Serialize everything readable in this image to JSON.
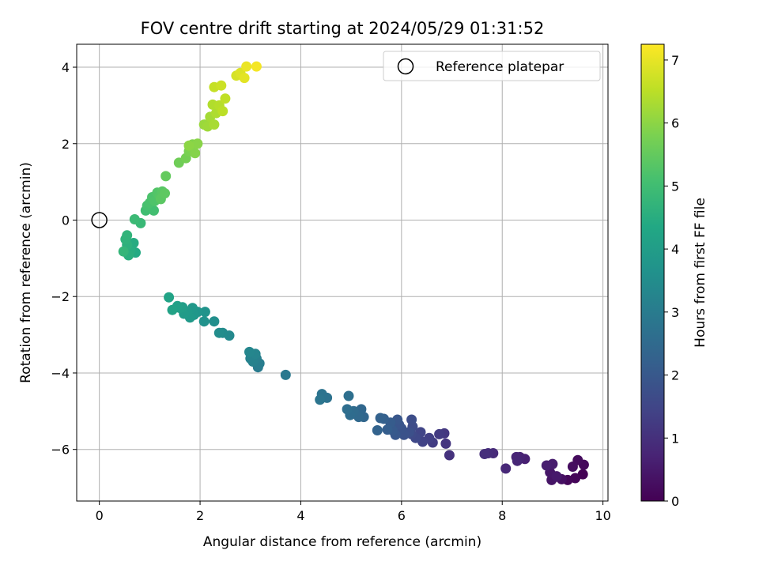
{
  "chart_data": {
    "type": "scatter",
    "title": "FOV centre drift starting at 2024/05/29 01:31:52",
    "xlabel": "Angular distance from reference (arcmin)",
    "ylabel": "Rotation from reference (arcmin)",
    "xlim": [
      -0.45,
      10.1
    ],
    "ylim": [
      -7.35,
      4.6
    ],
    "xticks": [
      0,
      2,
      4,
      6,
      8,
      10
    ],
    "yticks": [
      -6,
      -4,
      -2,
      0,
      2,
      4
    ],
    "grid": true,
    "legend": {
      "placement": "top-right",
      "entries": [
        "Reference platepar"
      ]
    },
    "reference_point": {
      "label": "Reference platepar",
      "x": 0,
      "y": 0
    },
    "colorbar": {
      "label": "Hours from first FF file",
      "colormap": "viridis",
      "min": 0,
      "max": 7.25,
      "ticks": [
        0,
        1,
        2,
        3,
        4,
        5,
        6,
        7
      ]
    },
    "series": [
      {
        "points": [
          {
            "x": 9.6,
            "y": -6.65,
            "c": 0.02
          },
          {
            "x": 9.45,
            "y": -6.75,
            "c": 0.08
          },
          {
            "x": 9.3,
            "y": -6.8,
            "c": 0.12
          },
          {
            "x": 9.62,
            "y": -6.4,
            "c": 0.15
          },
          {
            "x": 9.5,
            "y": -6.28,
            "c": 0.2
          },
          {
            "x": 9.4,
            "y": -6.45,
            "c": 0.25
          },
          {
            "x": 9.18,
            "y": -6.78,
            "c": 0.3
          },
          {
            "x": 9.05,
            "y": -6.72,
            "c": 0.35
          },
          {
            "x": 8.98,
            "y": -6.8,
            "c": 0.4
          },
          {
            "x": 8.95,
            "y": -6.6,
            "c": 0.45
          },
          {
            "x": 9.08,
            "y": -6.7,
            "c": 0.5
          },
          {
            "x": 9.0,
            "y": -6.38,
            "c": 0.55
          },
          {
            "x": 8.88,
            "y": -6.42,
            "c": 0.6
          },
          {
            "x": 8.45,
            "y": -6.25,
            "c": 0.65
          },
          {
            "x": 8.35,
            "y": -6.2,
            "c": 0.7
          },
          {
            "x": 8.28,
            "y": -6.2,
            "c": 0.75
          },
          {
            "x": 8.3,
            "y": -6.3,
            "c": 0.78
          },
          {
            "x": 8.07,
            "y": -6.5,
            "c": 0.82
          },
          {
            "x": 7.82,
            "y": -6.1,
            "c": 0.88
          },
          {
            "x": 7.72,
            "y": -6.1,
            "c": 0.92
          },
          {
            "x": 7.65,
            "y": -6.12,
            "c": 0.97
          },
          {
            "x": 6.95,
            "y": -6.15,
            "c": 1.05
          },
          {
            "x": 6.88,
            "y": -5.85,
            "c": 1.12
          },
          {
            "x": 6.85,
            "y": -5.58,
            "c": 1.18
          },
          {
            "x": 6.75,
            "y": -5.6,
            "c": 1.25
          },
          {
            "x": 6.62,
            "y": -5.82,
            "c": 1.3
          },
          {
            "x": 6.55,
            "y": -5.7,
            "c": 1.36
          },
          {
            "x": 6.42,
            "y": -5.8,
            "c": 1.42
          },
          {
            "x": 6.38,
            "y": -5.55,
            "c": 1.48
          },
          {
            "x": 6.28,
            "y": -5.7,
            "c": 1.55
          },
          {
            "x": 6.2,
            "y": -5.6,
            "c": 1.6
          },
          {
            "x": 6.22,
            "y": -5.4,
            "c": 1.66
          },
          {
            "x": 6.2,
            "y": -5.22,
            "c": 1.7
          },
          {
            "x": 6.15,
            "y": -5.55,
            "c": 1.76
          },
          {
            "x": 6.05,
            "y": -5.62,
            "c": 1.82
          },
          {
            "x": 6.0,
            "y": -5.45,
            "c": 1.86
          },
          {
            "x": 5.95,
            "y": -5.35,
            "c": 1.9
          },
          {
            "x": 5.92,
            "y": -5.22,
            "c": 1.95
          },
          {
            "x": 5.88,
            "y": -5.62,
            "c": 2.0
          },
          {
            "x": 5.82,
            "y": -5.5,
            "c": 2.05
          },
          {
            "x": 5.78,
            "y": -5.3,
            "c": 2.1
          },
          {
            "x": 5.72,
            "y": -5.48,
            "c": 2.15
          },
          {
            "x": 5.65,
            "y": -5.2,
            "c": 2.2
          },
          {
            "x": 5.58,
            "y": -5.18,
            "c": 2.25
          },
          {
            "x": 5.52,
            "y": -5.5,
            "c": 2.3
          },
          {
            "x": 5.25,
            "y": -5.15,
            "c": 2.38
          },
          {
            "x": 5.2,
            "y": -4.95,
            "c": 2.42
          },
          {
            "x": 5.15,
            "y": -5.15,
            "c": 2.47
          },
          {
            "x": 5.05,
            "y": -5.0,
            "c": 2.52
          },
          {
            "x": 4.98,
            "y": -5.1,
            "c": 2.56
          },
          {
            "x": 4.92,
            "y": -4.95,
            "c": 2.6
          },
          {
            "x": 4.95,
            "y": -4.6,
            "c": 2.65
          },
          {
            "x": 4.52,
            "y": -4.65,
            "c": 2.72
          },
          {
            "x": 4.42,
            "y": -4.55,
            "c": 2.76
          },
          {
            "x": 4.38,
            "y": -4.7,
            "c": 2.8
          },
          {
            "x": 3.7,
            "y": -4.05,
            "c": 2.9
          },
          {
            "x": 3.15,
            "y": -3.85,
            "c": 3.0
          },
          {
            "x": 3.18,
            "y": -3.75,
            "c": 3.05
          },
          {
            "x": 3.12,
            "y": -3.62,
            "c": 3.1
          },
          {
            "x": 3.05,
            "y": -3.7,
            "c": 3.15
          },
          {
            "x": 3.0,
            "y": -3.62,
            "c": 3.2
          },
          {
            "x": 3.1,
            "y": -3.5,
            "c": 3.25
          },
          {
            "x": 2.98,
            "y": -3.45,
            "c": 3.3
          },
          {
            "x": 2.58,
            "y": -3.02,
            "c": 3.4
          },
          {
            "x": 2.45,
            "y": -2.95,
            "c": 3.45
          },
          {
            "x": 2.38,
            "y": -2.95,
            "c": 3.5
          },
          {
            "x": 2.28,
            "y": -2.65,
            "c": 3.58
          },
          {
            "x": 2.08,
            "y": -2.65,
            "c": 3.65
          },
          {
            "x": 2.1,
            "y": -2.4,
            "c": 3.7
          },
          {
            "x": 1.95,
            "y": -2.4,
            "c": 3.76
          },
          {
            "x": 1.88,
            "y": -2.48,
            "c": 3.8
          },
          {
            "x": 1.85,
            "y": -2.3,
            "c": 3.84
          },
          {
            "x": 1.8,
            "y": -2.55,
            "c": 3.88
          },
          {
            "x": 1.75,
            "y": -2.4,
            "c": 3.92
          },
          {
            "x": 1.68,
            "y": -2.45,
            "c": 3.95
          },
          {
            "x": 1.65,
            "y": -2.28,
            "c": 4.0
          },
          {
            "x": 1.6,
            "y": -2.3,
            "c": 4.05
          },
          {
            "x": 1.55,
            "y": -2.25,
            "c": 4.1
          },
          {
            "x": 1.45,
            "y": -2.35,
            "c": 4.15
          },
          {
            "x": 1.38,
            "y": -2.02,
            "c": 4.2
          },
          {
            "x": 0.72,
            "y": -0.85,
            "c": 4.4
          },
          {
            "x": 0.68,
            "y": -0.6,
            "c": 4.45
          },
          {
            "x": 0.62,
            "y": -0.8,
            "c": 4.5
          },
          {
            "x": 0.58,
            "y": -0.92,
            "c": 4.55
          },
          {
            "x": 0.55,
            "y": -0.65,
            "c": 4.6
          },
          {
            "x": 0.52,
            "y": -0.5,
            "c": 4.65
          },
          {
            "x": 0.55,
            "y": -0.4,
            "c": 4.7
          },
          {
            "x": 0.48,
            "y": -0.82,
            "c": 4.75
          },
          {
            "x": 0.82,
            "y": -0.08,
            "c": 4.85
          },
          {
            "x": 0.7,
            "y": 0.02,
            "c": 4.9
          },
          {
            "x": 0.92,
            "y": 0.25,
            "c": 5.0
          },
          {
            "x": 1.08,
            "y": 0.25,
            "c": 5.05
          },
          {
            "x": 0.95,
            "y": 0.38,
            "c": 5.1
          },
          {
            "x": 1.0,
            "y": 0.45,
            "c": 5.14
          },
          {
            "x": 1.05,
            "y": 0.6,
            "c": 5.18
          },
          {
            "x": 1.1,
            "y": 0.5,
            "c": 5.22
          },
          {
            "x": 1.15,
            "y": 0.72,
            "c": 5.26
          },
          {
            "x": 1.2,
            "y": 0.62,
            "c": 5.3
          },
          {
            "x": 1.25,
            "y": 0.75,
            "c": 5.34
          },
          {
            "x": 1.22,
            "y": 0.55,
            "c": 5.38
          },
          {
            "x": 1.3,
            "y": 0.7,
            "c": 5.42
          },
          {
            "x": 1.32,
            "y": 1.15,
            "c": 5.5
          },
          {
            "x": 1.58,
            "y": 1.5,
            "c": 5.65
          },
          {
            "x": 1.72,
            "y": 1.62,
            "c": 5.72
          },
          {
            "x": 1.78,
            "y": 1.8,
            "c": 5.78
          },
          {
            "x": 1.82,
            "y": 1.9,
            "c": 5.83
          },
          {
            "x": 1.85,
            "y": 1.98,
            "c": 5.88
          },
          {
            "x": 1.9,
            "y": 1.75,
            "c": 5.92
          },
          {
            "x": 1.95,
            "y": 2.0,
            "c": 5.96
          },
          {
            "x": 1.78,
            "y": 1.95,
            "c": 6.0
          },
          {
            "x": 2.08,
            "y": 2.5,
            "c": 6.15
          },
          {
            "x": 2.15,
            "y": 2.45,
            "c": 6.2
          },
          {
            "x": 2.2,
            "y": 2.7,
            "c": 6.25
          },
          {
            "x": 2.28,
            "y": 2.5,
            "c": 6.3
          },
          {
            "x": 2.32,
            "y": 2.8,
            "c": 6.35
          },
          {
            "x": 2.25,
            "y": 3.02,
            "c": 6.4
          },
          {
            "x": 2.38,
            "y": 3.0,
            "c": 6.45
          },
          {
            "x": 2.45,
            "y": 2.85,
            "c": 6.5
          },
          {
            "x": 2.5,
            "y": 3.18,
            "c": 6.55
          },
          {
            "x": 2.28,
            "y": 3.48,
            "c": 6.62
          },
          {
            "x": 2.42,
            "y": 3.52,
            "c": 6.68
          },
          {
            "x": 2.72,
            "y": 3.78,
            "c": 6.8
          },
          {
            "x": 2.8,
            "y": 3.85,
            "c": 6.88
          },
          {
            "x": 2.88,
            "y": 3.72,
            "c": 6.95
          },
          {
            "x": 2.92,
            "y": 4.02,
            "c": 7.05
          },
          {
            "x": 3.12,
            "y": 4.02,
            "c": 7.15
          }
        ]
      }
    ]
  }
}
